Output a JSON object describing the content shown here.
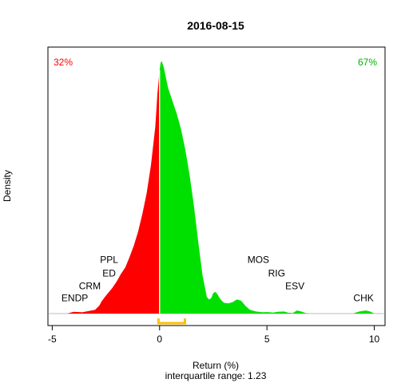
{
  "chart_data": {
    "type": "area",
    "title": "2016-08-15",
    "xlabel": "Return (%)",
    "subtitle": "interquartile range: 1.23",
    "ylabel": "Density",
    "xlim": [
      -5.2,
      10.5
    ],
    "ylim": [
      0,
      1.0
    ],
    "xticks": [
      -5,
      0,
      5,
      10
    ],
    "share_negative": "32%",
    "share_positive": "67%",
    "colors": {
      "negative": "#ff0000",
      "positive": "#00e000",
      "iqr": "#ffc000",
      "divider": "#ffffff",
      "baseline": "#bebebe"
    },
    "interquartile_range": {
      "value": 1.23,
      "q1": -0.05,
      "q3": 1.18
    },
    "density": {
      "x": [
        -4.3,
        -4.0,
        -3.6,
        -3.3,
        -3.0,
        -2.8,
        -2.7,
        -2.5,
        -2.2,
        -2.0,
        -1.8,
        -1.6,
        -1.4,
        -1.2,
        -1.0,
        -0.8,
        -0.6,
        -0.4,
        -0.2,
        -0.1,
        0.0,
        0.05,
        0.1,
        0.2,
        0.3,
        0.4,
        0.6,
        0.8,
        1.0,
        1.2,
        1.4,
        1.6,
        1.8,
        2.0,
        2.2,
        2.3,
        2.4,
        2.5,
        2.6,
        2.7,
        2.8,
        2.9,
        3.0,
        3.2,
        3.4,
        3.6,
        3.8,
        4.0,
        4.2,
        4.5,
        4.8,
        5.0,
        5.3,
        5.5,
        5.8,
        6.0,
        6.2,
        6.4,
        6.6,
        6.8,
        7.0,
        7.5,
        8.0,
        8.5,
        9.0,
        9.3,
        9.6,
        9.8,
        10.0
      ],
      "y": [
        0.0,
        0.007,
        0.005,
        0.01,
        0.015,
        0.032,
        0.048,
        0.07,
        0.1,
        0.125,
        0.155,
        0.18,
        0.22,
        0.265,
        0.32,
        0.39,
        0.47,
        0.58,
        0.73,
        0.86,
        0.95,
        0.98,
        0.985,
        0.96,
        0.92,
        0.88,
        0.83,
        0.78,
        0.72,
        0.64,
        0.54,
        0.42,
        0.28,
        0.15,
        0.065,
        0.055,
        0.06,
        0.08,
        0.085,
        0.075,
        0.06,
        0.05,
        0.042,
        0.04,
        0.045,
        0.055,
        0.05,
        0.03,
        0.015,
        0.008,
        0.005,
        0.006,
        0.004,
        0.007,
        0.008,
        0.003,
        0.002,
        0.012,
        0.008,
        0.002,
        0.0,
        0.0,
        0.0,
        0.0,
        0.0,
        0.008,
        0.012,
        0.008,
        0.0
      ]
    },
    "annotations": [
      {
        "label": "ENDP",
        "x": -3.95,
        "y": 0.048
      },
      {
        "label": "CRM",
        "x": -3.25,
        "y": 0.095
      },
      {
        "label": "ED",
        "x": -2.35,
        "y": 0.145
      },
      {
        "label": "PPL",
        "x": -2.35,
        "y": 0.198
      },
      {
        "label": "MOS",
        "x": 4.6,
        "y": 0.198
      },
      {
        "label": "RIG",
        "x": 5.45,
        "y": 0.145
      },
      {
        "label": "ESV",
        "x": 6.3,
        "y": 0.095
      },
      {
        "label": "CHK",
        "x": 9.5,
        "y": 0.048
      }
    ]
  }
}
